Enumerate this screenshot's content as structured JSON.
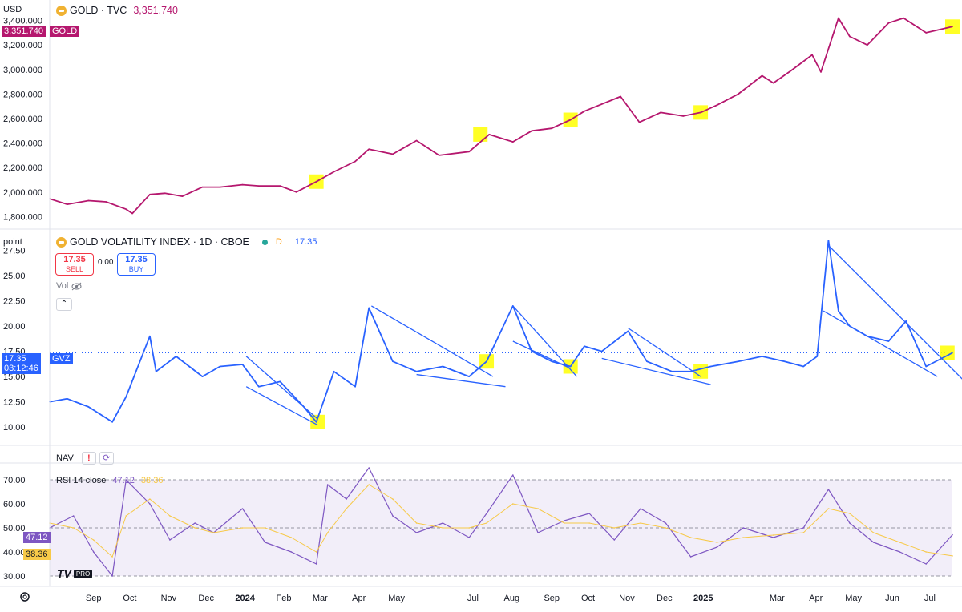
{
  "top_panel": {
    "unit_label": "USD",
    "symbol_title": "GOLD · TVC",
    "last_price": "3,351.740",
    "price_tag_value": "3,351.740",
    "price_tag_symbol": "GOLD",
    "line_color": "#b5176e"
  },
  "middle_panel": {
    "unit_label": "point",
    "symbol_title": "GOLD VOLATILITY INDEX · 1D · CBOE",
    "market_status": "D",
    "last_value": "17.35",
    "sell_price": "17.35",
    "sell_label": "SELL",
    "spread": "0.00",
    "buy_price": "17.35",
    "buy_label": "BUY",
    "vol_label": "Vol",
    "price_tag_value": "17.35",
    "price_tag_time": "03:12:46",
    "price_tag_symbol": "GVZ",
    "line_color": "#2962ff",
    "collapse_icon": "chevron-up-icon"
  },
  "nav_panel": {
    "label": "NAV",
    "alert_icon": "exclamation-icon",
    "refresh_icon": "refresh-icon"
  },
  "rsi_panel": {
    "title": "RSI 14 close",
    "rsi_value": "47.12",
    "ma_value": "38.36",
    "rsi_tag": "47.12",
    "ma_tag": "38.36",
    "rsi_color": "#7e57c2",
    "ma_color": "#f7c948",
    "band_upper": 70,
    "band_middle": 50,
    "band_lower": 30
  },
  "branding": {
    "logo_text": "TV",
    "pro_badge": "PRO"
  },
  "time_axis": {
    "labels": [
      "Sep",
      "Oct",
      "Nov",
      "Dec",
      "2024",
      "Feb",
      "Mar",
      "Apr",
      "May",
      "Jul",
      "Aug",
      "Sep",
      "Oct",
      "Nov",
      "Dec",
      "2025",
      "Mar",
      "Apr",
      "May",
      "Jun",
      "Jul"
    ],
    "bold_labels": [
      "2024",
      "2025"
    ],
    "settings_icon": "gear-icon"
  },
  "chart_data": [
    {
      "type": "line",
      "title": "GOLD · TVC",
      "ylabel": "USD",
      "ylim": [
        1750,
        3450
      ],
      "y_ticks": [
        "1,800.000",
        "2,000.000",
        "2,200.000",
        "2,400.000",
        "2,600.000",
        "2,800.000",
        "3,000.000",
        "3,200.000",
        "3,400.000"
      ],
      "y_tick_values": [
        1800,
        2000,
        2200,
        2400,
        2600,
        2800,
        3000,
        3200,
        3400
      ],
      "x_range": [
        "2023-08-01",
        "2025-07-22"
      ],
      "x": [
        "2023-08-01",
        "2023-08-15",
        "2023-09-01",
        "2023-09-15",
        "2023-10-01",
        "2023-10-06",
        "2023-10-20",
        "2023-11-01",
        "2023-11-15",
        "2023-12-01",
        "2023-12-15",
        "2024-01-02",
        "2024-01-15",
        "2024-02-01",
        "2024-02-14",
        "2024-03-01",
        "2024-03-15",
        "2024-04-01",
        "2024-04-12",
        "2024-05-01",
        "2024-05-20",
        "2024-06-07",
        "2024-07-01",
        "2024-07-17",
        "2024-08-05",
        "2024-08-20",
        "2024-09-05",
        "2024-09-20",
        "2024-10-01",
        "2024-10-30",
        "2024-11-14",
        "2024-12-01",
        "2024-12-19",
        "2025-01-02",
        "2025-01-15",
        "2025-02-01",
        "2025-02-20",
        "2025-03-01",
        "2025-03-15",
        "2025-04-01",
        "2025-04-08",
        "2025-04-22",
        "2025-05-01",
        "2025-05-15",
        "2025-06-01",
        "2025-06-13",
        "2025-07-01",
        "2025-07-22"
      ],
      "series": [
        {
          "values": [
            1945,
            1900,
            1930,
            1920,
            1860,
            1825,
            1980,
            1990,
            1965,
            2040,
            2040,
            2060,
            2050,
            2050,
            2000,
            2085,
            2165,
            2250,
            2350,
            2310,
            2420,
            2300,
            2330,
            2470,
            2410,
            2500,
            2520,
            2590,
            2660,
            2780,
            2570,
            2650,
            2620,
            2650,
            2710,
            2800,
            2950,
            2890,
            2990,
            3120,
            2980,
            3420,
            3270,
            3200,
            3380,
            3420,
            3300,
            3350
          ]
        }
      ],
      "highlights": [
        "2024-03-01",
        "2024-07-10",
        "2024-09-20",
        "2025-01-02",
        "2025-07-22"
      ]
    },
    {
      "type": "line",
      "title": "GOLD VOLATILITY INDEX · 1D · CBOE",
      "ylabel": "point",
      "ylim": [
        8.5,
        28.5
      ],
      "y_ticks": [
        "10.00",
        "12.50",
        "15.00",
        "17.50",
        "20.00",
        "22.50",
        "25.00",
        "27.50"
      ],
      "y_tick_values": [
        10,
        12.5,
        15,
        17.5,
        20,
        22.5,
        25,
        27.5
      ],
      "x_range": [
        "2023-08-01",
        "2025-07-22"
      ],
      "x": [
        "2023-08-01",
        "2023-08-15",
        "2023-09-01",
        "2023-09-20",
        "2023-10-01",
        "2023-10-20",
        "2023-10-25",
        "2023-11-10",
        "2023-12-01",
        "2023-12-15",
        "2024-01-02",
        "2024-01-15",
        "2024-02-01",
        "2024-02-20",
        "2024-03-01",
        "2024-03-15",
        "2024-04-01",
        "2024-04-12",
        "2024-05-01",
        "2024-05-20",
        "2024-06-10",
        "2024-07-01",
        "2024-07-15",
        "2024-08-05",
        "2024-08-20",
        "2024-09-05",
        "2024-09-20",
        "2024-10-01",
        "2024-10-15",
        "2024-11-05",
        "2024-11-20",
        "2024-12-10",
        "2024-12-25",
        "2025-01-10",
        "2025-02-01",
        "2025-02-20",
        "2025-03-10",
        "2025-03-25",
        "2025-04-05",
        "2025-04-14",
        "2025-04-22",
        "2025-05-01",
        "2025-05-15",
        "2025-06-01",
        "2025-06-15",
        "2025-07-01",
        "2025-07-22"
      ],
      "series": [
        {
          "name": "GVZ",
          "values": [
            12.5,
            12.8,
            12.0,
            10.5,
            13.0,
            19.0,
            15.5,
            17.0,
            15.0,
            16.0,
            16.2,
            14.0,
            14.5,
            12.0,
            10.5,
            15.5,
            14.0,
            21.8,
            16.5,
            15.5,
            16.0,
            15.0,
            16.5,
            22.0,
            17.5,
            16.5,
            16.0,
            18.0,
            17.5,
            19.5,
            16.5,
            15.5,
            15.5,
            16.0,
            16.5,
            17.0,
            16.5,
            16.0,
            17.0,
            28.5,
            21.5,
            20.0,
            19.0,
            18.5,
            20.5,
            16.0,
            17.35
          ]
        }
      ],
      "trendlines": [
        {
          "from": [
            "2024-01-05",
            17.0
          ],
          "to": [
            "2024-03-02",
            10.8
          ]
        },
        {
          "from": [
            "2024-01-05",
            14.0
          ],
          "to": [
            "2024-03-02",
            10.2
          ]
        },
        {
          "from": [
            "2024-04-14",
            22.0
          ],
          "to": [
            "2024-07-20",
            15.0
          ]
        },
        {
          "from": [
            "2024-05-20",
            15.2
          ],
          "to": [
            "2024-07-30",
            14.0
          ]
        },
        {
          "from": [
            "2024-08-05",
            22.0
          ],
          "to": [
            "2024-09-25",
            15.0
          ]
        },
        {
          "from": [
            "2024-08-05",
            18.5
          ],
          "to": [
            "2024-09-20",
            15.8
          ]
        },
        {
          "from": [
            "2024-11-05",
            19.8
          ],
          "to": [
            "2025-01-02",
            15.0
          ]
        },
        {
          "from": [
            "2024-10-15",
            16.8
          ],
          "to": [
            "2025-01-10",
            14.2
          ]
        },
        {
          "from": [
            "2025-04-14",
            28.0
          ],
          "to": [
            "2025-08-01",
            14.5
          ]
        },
        {
          "from": [
            "2025-04-10",
            21.5
          ],
          "to": [
            "2025-07-10",
            15.0
          ]
        }
      ],
      "highlights": [
        "2024-03-02",
        "2024-07-15",
        "2024-09-20",
        "2025-01-02",
        "2025-07-18"
      ]
    },
    {
      "type": "line",
      "title": "RSI 14 close",
      "ylim": [
        27,
        75
      ],
      "y_ticks": [
        "30.00",
        "40.00",
        "50.00",
        "60.00",
        "70.00"
      ],
      "y_tick_values": [
        30,
        40,
        50,
        60,
        70
      ],
      "x_range": [
        "2023-08-01",
        "2025-07-22"
      ],
      "x": [
        "2023-08-01",
        "2023-08-20",
        "2023-09-05",
        "2023-09-20",
        "2023-10-01",
        "2023-10-20",
        "2023-11-05",
        "2023-11-25",
        "2023-12-10",
        "2024-01-02",
        "2024-01-20",
        "2024-02-10",
        "2024-03-01",
        "2024-03-10",
        "2024-03-25",
        "2024-04-12",
        "2024-05-01",
        "2024-05-20",
        "2024-06-10",
        "2024-07-01",
        "2024-07-15",
        "2024-08-05",
        "2024-08-25",
        "2024-09-15",
        "2024-10-05",
        "2024-10-25",
        "2024-11-15",
        "2024-12-05",
        "2024-12-25",
        "2025-01-15",
        "2025-02-05",
        "2025-03-01",
        "2025-03-25",
        "2025-04-14",
        "2025-05-01",
        "2025-05-20",
        "2025-06-10",
        "2025-07-01",
        "2025-07-22"
      ],
      "series": [
        {
          "name": "RSI",
          "values": [
            50,
            55,
            40,
            30,
            70,
            60,
            45,
            52,
            48,
            58,
            44,
            40,
            35,
            68,
            62,
            75,
            55,
            48,
            52,
            46,
            56,
            72,
            48,
            53,
            56,
            45,
            58,
            52,
            38,
            42,
            50,
            46,
            50,
            66,
            52,
            44,
            40,
            35,
            47.12
          ]
        },
        {
          "name": "RSI-based MA",
          "values": [
            52,
            50,
            45,
            38,
            55,
            62,
            55,
            50,
            48,
            50,
            50,
            46,
            40,
            48,
            58,
            68,
            62,
            52,
            50,
            50,
            52,
            60,
            58,
            52,
            52,
            50,
            52,
            50,
            46,
            44,
            46,
            47,
            48,
            58,
            56,
            48,
            44,
            40,
            38.36
          ]
        }
      ],
      "bands": [
        30,
        50,
        70
      ]
    }
  ]
}
